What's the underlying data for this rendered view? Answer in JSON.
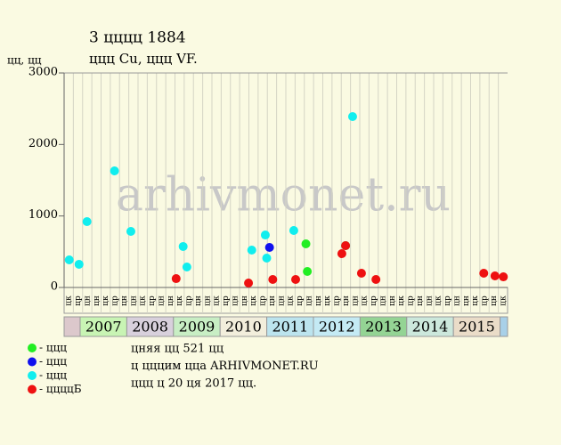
{
  "chart_data": {
    "type": "scatter",
    "title": "3 цццц 1884",
    "subtitle": "ццц Cu, ццц VF.",
    "y_label": "цц, цц",
    "watermark": "arhivmonet.ru",
    "ylim": [
      0,
      3000
    ],
    "yticks": [
      0,
      1000,
      2000,
      3000
    ],
    "xlim": [
      2006.66,
      2016.16
    ],
    "grid": true,
    "years": [
      null,
      "2007",
      "2008",
      "2009",
      "2010",
      "2011",
      "2012",
      "2013",
      "2014",
      "2015",
      null
    ],
    "year_colors": [
      "#dcc8cc",
      "#c8f4b4",
      "#d8d0dc",
      "#c8eec4",
      "#f2eedc",
      "#bce4ee",
      "#c4eaf4",
      "#94d494",
      "#cce8dc",
      "#eadcc8",
      "#a8d0e8"
    ],
    "month_labels": [
      "цк",
      "цр",
      "цн",
      "цн",
      "цк",
      "цр",
      "цн",
      "цн",
      "цк",
      "цр",
      "цн",
      "цн",
      "цк",
      "цр",
      "цн",
      "цн",
      "цк",
      "цр",
      "цн",
      "цн",
      "цк",
      "цр",
      "цн",
      "цн",
      "цк",
      "цр",
      "цн",
      "цн",
      "цк",
      "цр",
      "цн",
      "цн",
      "цк",
      "цр",
      "цн",
      "цн",
      "цк",
      "цр",
      "цн",
      "цн",
      "цк",
      "цр",
      "цн",
      "цн",
      "цк",
      "цр",
      "цн",
      "цк"
    ],
    "series": [
      {
        "name": "- ццц",
        "color": "#22ee22",
        "x": [
          2011.84,
          2011.87,
          2012.69
        ],
        "values": [
          610,
          224,
          585
        ]
      },
      {
        "name": "- ццц",
        "color": "#1010ee",
        "x": [
          2011.06
        ],
        "values": [
          560
        ]
      },
      {
        "name": "- ццц",
        "color": "#11eeee",
        "x": [
          2006.77,
          2006.98,
          2007.15,
          2007.74,
          2008.09,
          2009.21,
          2009.29,
          2010.68,
          2010.97,
          2011.0,
          2011.58,
          2012.84
        ],
        "values": [
          386,
          324,
          921,
          1631,
          784,
          573,
          286,
          523,
          734,
          411,
          797,
          2390
        ]
      },
      {
        "name": "- ццццБ",
        "color": "#ee1111",
        "x": [
          2009.06,
          2010.61,
          2011.13,
          2011.62,
          2012.61,
          2012.69,
          2013.03,
          2013.34,
          2015.65,
          2015.89,
          2016.07
        ],
        "values": [
          124,
          62,
          112,
          112,
          473,
          585,
          199,
          112,
          199,
          162,
          149
        ]
      }
    ],
    "notes": [
      "цняя цц 521 цц",
      "ц цццим цца ARHIVMONET.RU",
      "ццц ц 20 ця 2017 цц."
    ]
  }
}
